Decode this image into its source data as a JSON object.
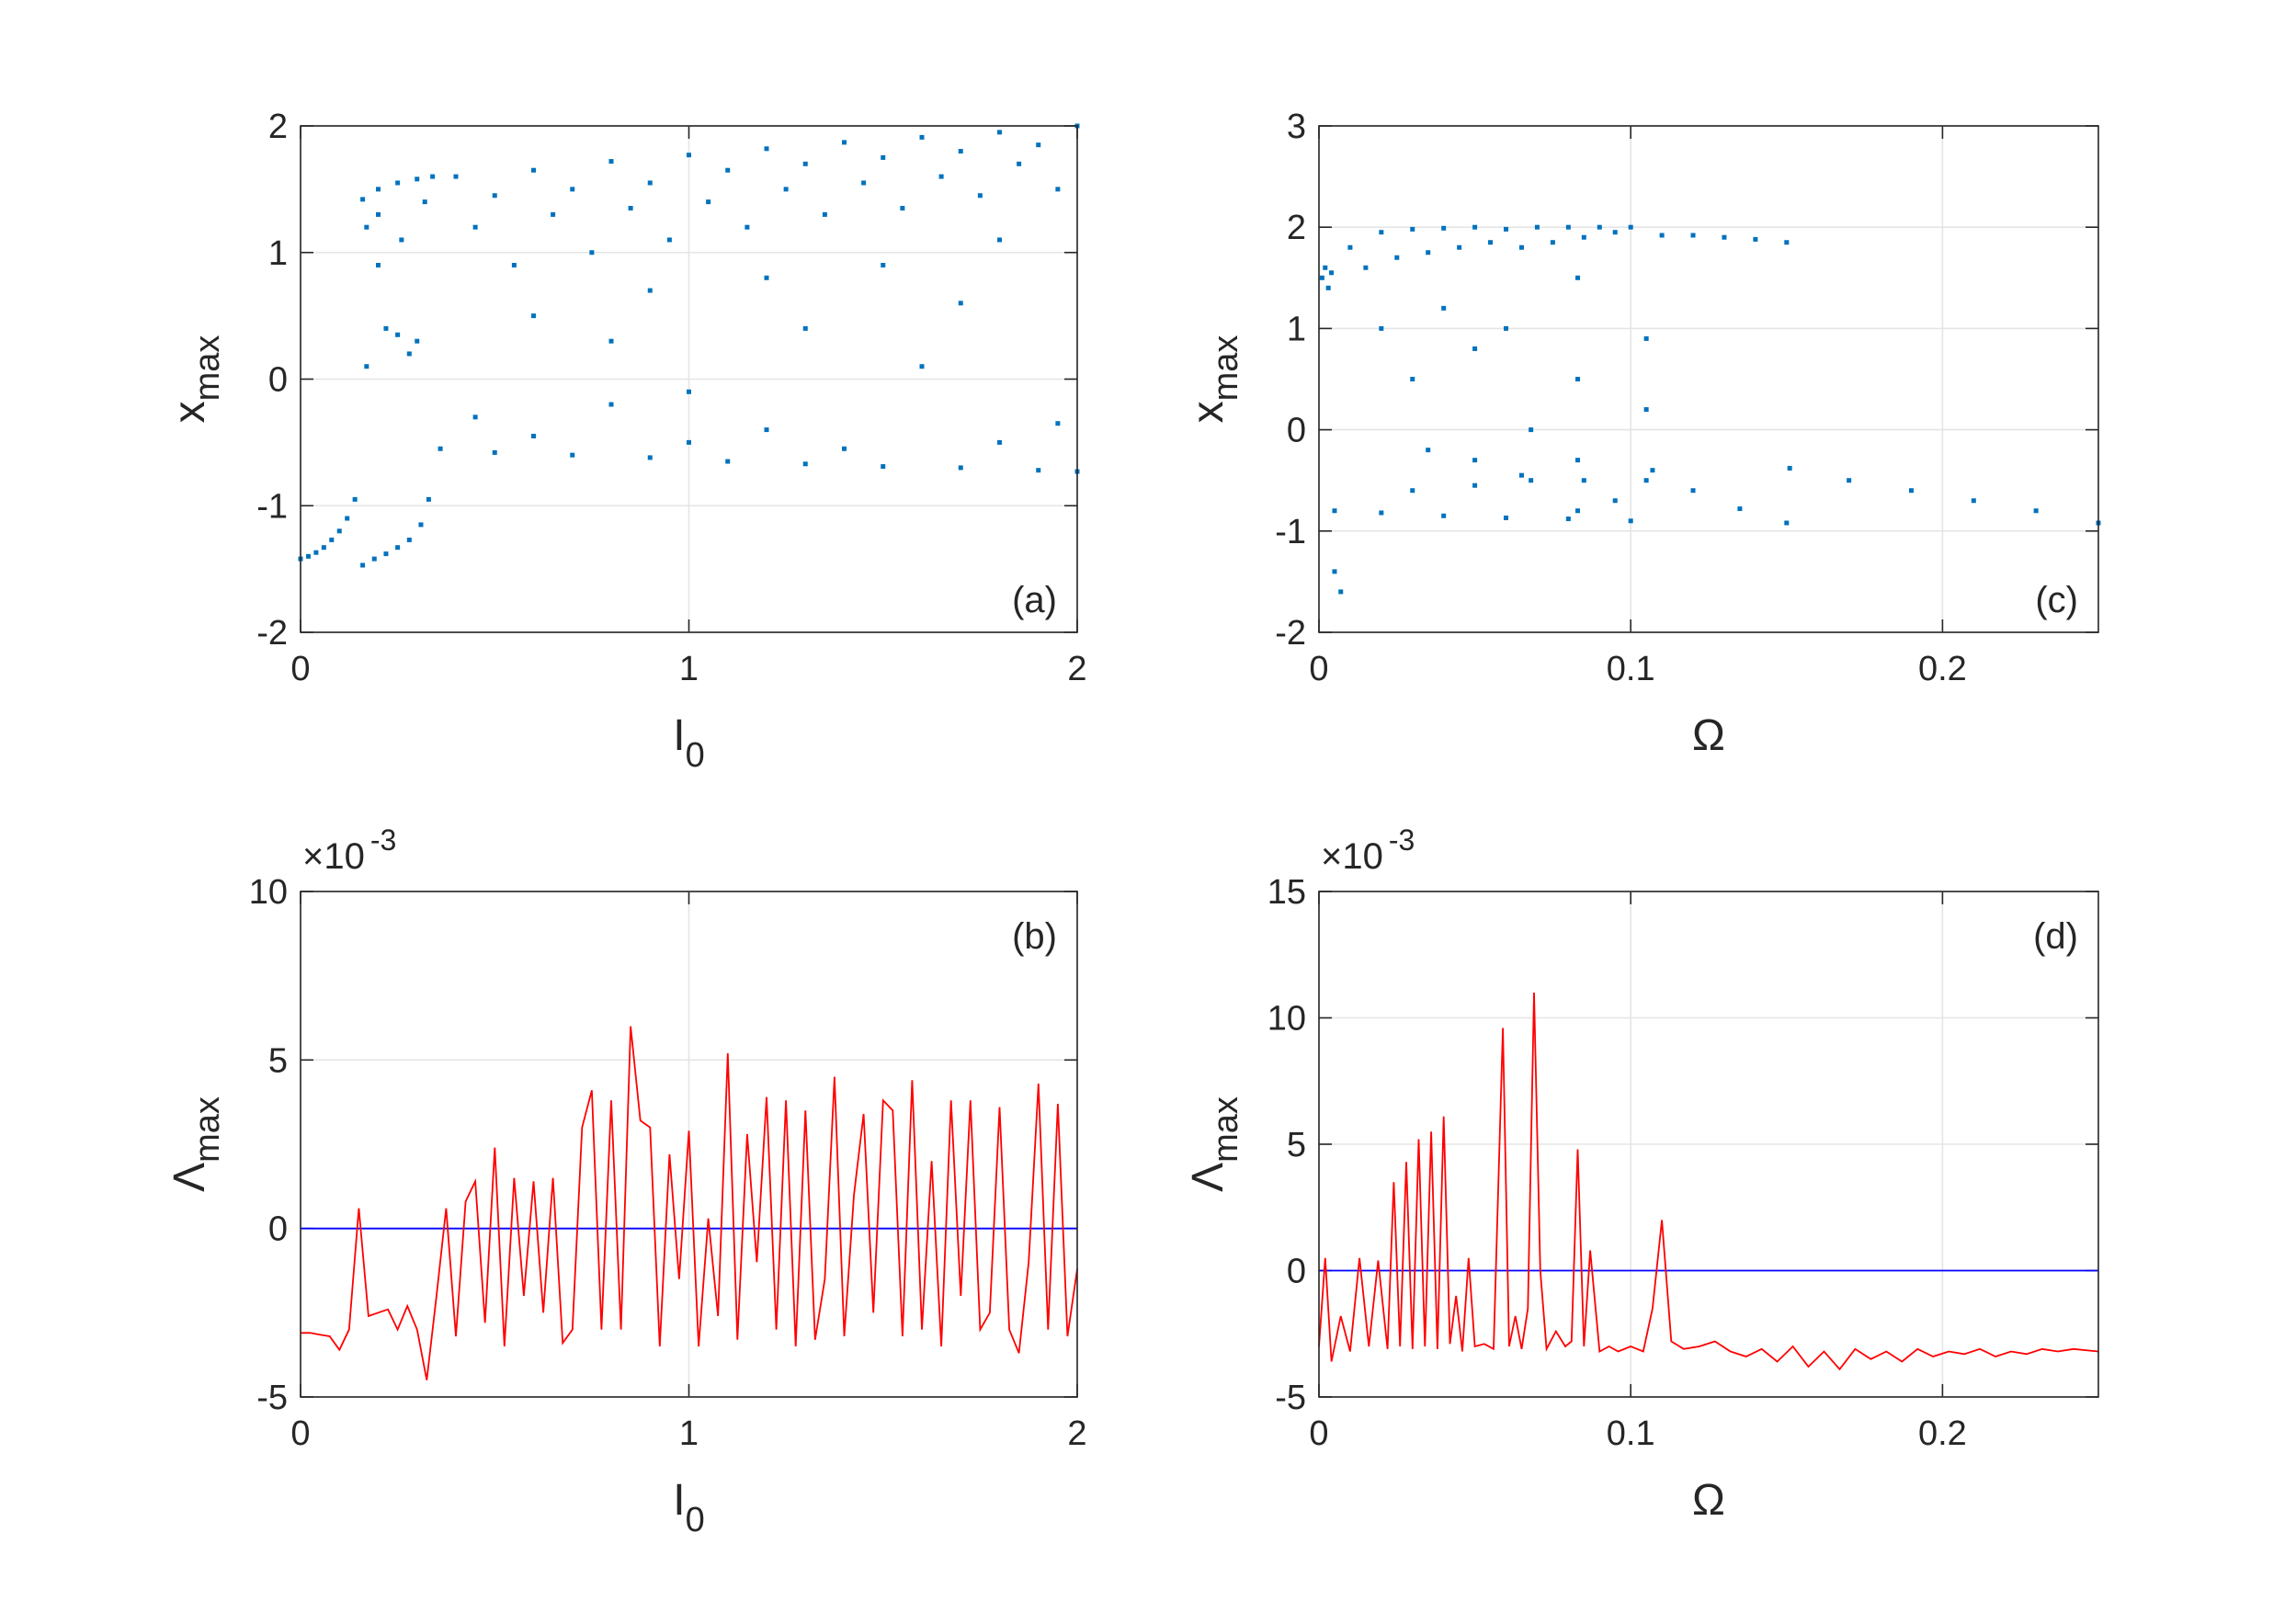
{
  "chart_data": [
    {
      "type": "scatter",
      "xlabel": "I",
      "xlabel_sub": "0",
      "ylabel": "x",
      "ylabel_sub": "max",
      "annotation": "(a)",
      "annotation_corner": "bottom-right",
      "color": "#0072bd",
      "grid": true,
      "xlim": [
        0,
        2
      ],
      "xticks": [
        0,
        1,
        2
      ],
      "ylim": [
        -2,
        2
      ],
      "yticks": [
        -2,
        -1,
        0,
        1,
        2
      ],
      "x": [
        0,
        0.02,
        0.04,
        0.06,
        0.08,
        0.1,
        0.12,
        0.14,
        0.16,
        0.19,
        0.22,
        0.25,
        0.28,
        0.31,
        0.33,
        0.16,
        0.2,
        0.25,
        0.3,
        0.34,
        0.17,
        0.2,
        0.22,
        0.25,
        0.28,
        0.17,
        0.3,
        0.2,
        0.26,
        0.32,
        0.4,
        0.6,
        0.8,
        1.0,
        1.2,
        1.4,
        1.6,
        1.8,
        2.0,
        0.5,
        0.7,
        0.9,
        1.1,
        1.3,
        1.5,
        1.7,
        1.9,
        0.45,
        0.65,
        0.85,
        1.05,
        1.25,
        1.45,
        1.65,
        1.85,
        0.55,
        0.75,
        0.95,
        1.15,
        1.35,
        1.55,
        1.75,
        1.95,
        0.6,
        0.9,
        1.2,
        1.5,
        1.8,
        0.8,
        1.3,
        1.7,
        1.0,
        1.6,
        0.36,
        0.5,
        0.7,
        0.9,
        1.1,
        1.3,
        1.5,
        1.7,
        1.9,
        2.0,
        0.6,
        1.0,
        1.4,
        1.8,
        0.45,
        1.2,
        1.95,
        0.8
      ],
      "values": [
        -1.42,
        -1.4,
        -1.37,
        -1.33,
        -1.27,
        -1.2,
        -1.1,
        -0.95,
        -1.47,
        -1.42,
        -1.38,
        -1.33,
        -1.27,
        -1.15,
        -0.95,
        1.42,
        1.5,
        1.55,
        1.58,
        1.6,
        1.2,
        0.9,
        0.4,
        0.35,
        0.2,
        0.1,
        0.3,
        1.3,
        1.1,
        1.4,
        1.6,
        1.65,
        1.72,
        1.77,
        1.82,
        1.87,
        1.91,
        1.95,
        2.0,
        1.45,
        1.5,
        1.55,
        1.65,
        1.7,
        1.75,
        1.8,
        1.85,
        1.2,
        1.3,
        1.35,
        1.4,
        1.5,
        1.55,
        1.6,
        1.7,
        0.9,
        1.0,
        1.1,
        1.2,
        1.3,
        1.35,
        1.45,
        1.5,
        0.5,
        0.7,
        0.8,
        0.9,
        1.1,
        0.3,
        0.4,
        0.6,
        -0.1,
        0.1,
        -0.55,
        -0.58,
        -0.6,
        -0.62,
        -0.65,
        -0.67,
        -0.69,
        -0.7,
        -0.72,
        -0.73,
        -0.45,
        -0.5,
        -0.55,
        -0.5,
        -0.3,
        -0.4,
        -0.35,
        -0.2
      ]
    },
    {
      "type": "line",
      "xlabel": "I",
      "xlabel_sub": "0",
      "ylabel": "Λ",
      "ylabel_sub": "max",
      "annotation": "(b)",
      "annotation_corner": "top-right",
      "color": "#ff0000",
      "grid": true,
      "exponent_base": "×10",
      "exponent": "-3",
      "hline": {
        "value": 0,
        "color": "#0000ff"
      },
      "xlim": [
        0,
        2
      ],
      "xticks": [
        0,
        1,
        2
      ],
      "ylim": [
        -5,
        10
      ],
      "yticks": [
        -5,
        0,
        5,
        10
      ],
      "x": [
        0,
        0.025,
        0.05,
        0.075,
        0.1,
        0.125,
        0.15,
        0.175,
        0.2,
        0.225,
        0.25,
        0.275,
        0.3,
        0.325,
        0.35,
        0.375,
        0.4,
        0.425,
        0.45,
        0.475,
        0.5,
        0.525,
        0.55,
        0.575,
        0.6,
        0.625,
        0.65,
        0.675,
        0.7,
        0.725,
        0.75,
        0.775,
        0.8,
        0.825,
        0.85,
        0.875,
        0.9,
        0.925,
        0.95,
        0.975,
        1.0,
        1.025,
        1.05,
        1.075,
        1.1,
        1.125,
        1.15,
        1.175,
        1.2,
        1.225,
        1.25,
        1.275,
        1.3,
        1.325,
        1.35,
        1.375,
        1.4,
        1.425,
        1.45,
        1.475,
        1.5,
        1.525,
        1.55,
        1.575,
        1.6,
        1.625,
        1.65,
        1.675,
        1.7,
        1.725,
        1.75,
        1.775,
        1.8,
        1.825,
        1.85,
        1.875,
        1.9,
        1.925,
        1.95,
        1.975,
        2.0
      ],
      "values": [
        -3.1,
        -3.1,
        -3.15,
        -3.2,
        -3.6,
        -3.0,
        0.6,
        -2.6,
        -2.5,
        -2.4,
        -3.0,
        -2.3,
        -3.0,
        -4.5,
        -2.0,
        0.6,
        -3.2,
        0.8,
        1.4,
        -2.8,
        2.4,
        -3.5,
        1.5,
        -2.0,
        1.4,
        -2.5,
        1.5,
        -3.4,
        -3.0,
        3.0,
        4.1,
        -3.0,
        3.8,
        -3.0,
        6.0,
        3.2,
        3.0,
        -3.5,
        2.2,
        -1.5,
        2.9,
        -3.5,
        0.3,
        -2.6,
        5.2,
        -3.3,
        2.8,
        -1.0,
        3.9,
        -3.0,
        3.8,
        -3.5,
        3.5,
        -3.3,
        -1.5,
        4.5,
        -3.2,
        1.0,
        3.4,
        -2.5,
        3.8,
        3.5,
        -3.2,
        4.4,
        -3.0,
        2.0,
        -3.5,
        3.8,
        -2.0,
        3.8,
        -3.0,
        -2.5,
        3.6,
        -3.0,
        -3.7,
        -1.0,
        4.3,
        -3.0,
        3.7,
        -3.2,
        -1.2
      ]
    },
    {
      "type": "scatter",
      "xlabel": "Ω",
      "ylabel": "x",
      "ylabel_sub": "max",
      "annotation": "(c)",
      "annotation_corner": "bottom-right",
      "color": "#0072bd",
      "grid": true,
      "xlim": [
        0,
        0.25
      ],
      "xticks": [
        0,
        0.1,
        0.2
      ],
      "ylim": [
        -2,
        3
      ],
      "yticks": [
        -2,
        -1,
        0,
        1,
        2,
        3
      ],
      "x": [
        0.001,
        0.002,
        0.003,
        0.004,
        0.005,
        0.007,
        0.01,
        0.02,
        0.03,
        0.04,
        0.05,
        0.06,
        0.07,
        0.08,
        0.09,
        0.1,
        0.015,
        0.025,
        0.035,
        0.045,
        0.055,
        0.065,
        0.075,
        0.085,
        0.095,
        0.11,
        0.12,
        0.13,
        0.14,
        0.15,
        0.02,
        0.03,
        0.04,
        0.05,
        0.06,
        0.068,
        0.068,
        0.083,
        0.083,
        0.083,
        0.083,
        0.105,
        0.105,
        0.105,
        0.035,
        0.05,
        0.005,
        0.02,
        0.04,
        0.06,
        0.08,
        0.1,
        0.03,
        0.05,
        0.065,
        0.085,
        0.095,
        0.107,
        0.12,
        0.135,
        0.15,
        0.151,
        0.17,
        0.19,
        0.21,
        0.23,
        0.25
      ],
      "values": [
        1.5,
        1.6,
        1.4,
        1.55,
        -1.4,
        -1.6,
        1.8,
        1.95,
        1.98,
        1.99,
        2.0,
        1.98,
        2.0,
        2.0,
        2.0,
        2.0,
        1.6,
        1.7,
        1.75,
        1.8,
        1.85,
        1.8,
        1.85,
        1.9,
        1.95,
        1.92,
        1.92,
        1.9,
        1.88,
        1.85,
        1.0,
        0.5,
        1.2,
        0.8,
        1.0,
        0.0,
        -0.5,
        1.5,
        0.5,
        -0.3,
        -0.8,
        0.9,
        0.2,
        -0.5,
        -0.2,
        -0.3,
        -0.8,
        -0.82,
        -0.85,
        -0.87,
        -0.88,
        -0.9,
        -0.6,
        -0.55,
        -0.45,
        -0.5,
        -0.7,
        -0.4,
        -0.6,
        -0.78,
        -0.92,
        -0.38,
        -0.5,
        -0.6,
        -0.7,
        -0.8,
        -0.92
      ]
    },
    {
      "type": "line",
      "xlabel": "Ω",
      "ylabel": "Λ",
      "ylabel_sub": "max",
      "annotation": "(d)",
      "annotation_corner": "top-right",
      "color": "#ff0000",
      "grid": true,
      "exponent_base": "×10",
      "exponent": "-3",
      "hline": {
        "value": 0,
        "color": "#0000ff"
      },
      "xlim": [
        0,
        0.25
      ],
      "xticks": [
        0,
        0.1,
        0.2
      ],
      "ylim": [
        -5,
        15
      ],
      "yticks": [
        -5,
        0,
        5,
        10,
        15
      ],
      "x": [
        0,
        0.002,
        0.004,
        0.007,
        0.01,
        0.013,
        0.016,
        0.019,
        0.022,
        0.024,
        0.026,
        0.028,
        0.03,
        0.032,
        0.034,
        0.036,
        0.038,
        0.04,
        0.042,
        0.044,
        0.046,
        0.048,
        0.05,
        0.053,
        0.056,
        0.059,
        0.061,
        0.063,
        0.065,
        0.067,
        0.069,
        0.071,
        0.073,
        0.076,
        0.079,
        0.081,
        0.083,
        0.085,
        0.087,
        0.09,
        0.093,
        0.096,
        0.1,
        0.104,
        0.107,
        0.11,
        0.113,
        0.117,
        0.122,
        0.127,
        0.132,
        0.137,
        0.142,
        0.147,
        0.152,
        0.157,
        0.162,
        0.167,
        0.172,
        0.177,
        0.182,
        0.187,
        0.192,
        0.197,
        0.202,
        0.207,
        0.212,
        0.217,
        0.222,
        0.227,
        0.232,
        0.237,
        0.242,
        0.25
      ],
      "values": [
        -3.0,
        0.5,
        -3.6,
        -1.8,
        -3.2,
        0.5,
        -3.0,
        0.4,
        -3.1,
        3.5,
        -3.0,
        4.3,
        -3.1,
        5.2,
        -3.0,
        5.5,
        -3.1,
        6.1,
        -2.9,
        -1.0,
        -3.2,
        0.5,
        -3.0,
        -2.9,
        -3.1,
        9.6,
        -3.0,
        -1.8,
        -3.1,
        -1.5,
        11.0,
        0.0,
        -3.1,
        -2.4,
        -3.0,
        -2.8,
        4.8,
        -3.0,
        0.8,
        -3.2,
        -3.0,
        -3.2,
        -3.0,
        -3.2,
        -1.5,
        2.0,
        -2.8,
        -3.1,
        -3.0,
        -2.8,
        -3.2,
        -3.4,
        -3.1,
        -3.6,
        -3.0,
        -3.8,
        -3.2,
        -3.9,
        -3.1,
        -3.5,
        -3.2,
        -3.6,
        -3.1,
        -3.4,
        -3.2,
        -3.3,
        -3.1,
        -3.4,
        -3.2,
        -3.3,
        -3.1,
        -3.2,
        -3.1,
        -3.2
      ]
    }
  ]
}
